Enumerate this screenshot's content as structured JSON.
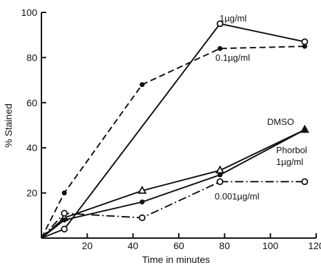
{
  "chart_data": {
    "type": "line",
    "xlabel": "Time in minutes",
    "ylabel": "% Stained",
    "xlim": [
      0,
      120
    ],
    "ylim": [
      0,
      100
    ],
    "x_ticks": [
      20,
      40,
      60,
      80,
      100,
      120
    ],
    "y_ticks": [
      20,
      40,
      60,
      80,
      100
    ],
    "grid": false,
    "series": [
      {
        "name": "1µg/ml",
        "line_style": "solid",
        "marker": "open-circle",
        "x": [
          0,
          10,
          78,
          115
        ],
        "y": [
          0,
          4,
          95,
          87
        ]
      },
      {
        "name": "0.1µg/ml",
        "line_style": "dashed",
        "marker": "filled-circle",
        "x": [
          0,
          10,
          44,
          78,
          115
        ],
        "y": [
          0,
          20,
          68,
          84,
          85
        ]
      },
      {
        "name": "DMSO",
        "line_style": "solid",
        "marker": "open-triangle",
        "x": [
          0,
          10,
          44,
          78,
          115
        ],
        "y": [
          0,
          9,
          21,
          30,
          48
        ]
      },
      {
        "name": "Phorbol 1µg/ml",
        "line_style": "solid",
        "marker": "filled-circle",
        "x": [
          0,
          10,
          44,
          78,
          115
        ],
        "y": [
          0,
          8,
          16,
          28,
          48
        ]
      },
      {
        "name": "0.001µg/ml",
        "line_style": "dash-dot",
        "marker": "open-circle",
        "x": [
          0,
          10,
          44,
          78,
          115
        ],
        "y": [
          0,
          11,
          9,
          25,
          25
        ]
      }
    ],
    "labels": {
      "one_ug": "1µg/ml",
      "point_one_ug": "0.1µg/ml",
      "dmso": "DMSO",
      "phorbol_line1": "Phorbol",
      "phorbol_line2": "1µg/ml",
      "point_zero_zero_one_ug": "0.001µg/ml"
    }
  }
}
